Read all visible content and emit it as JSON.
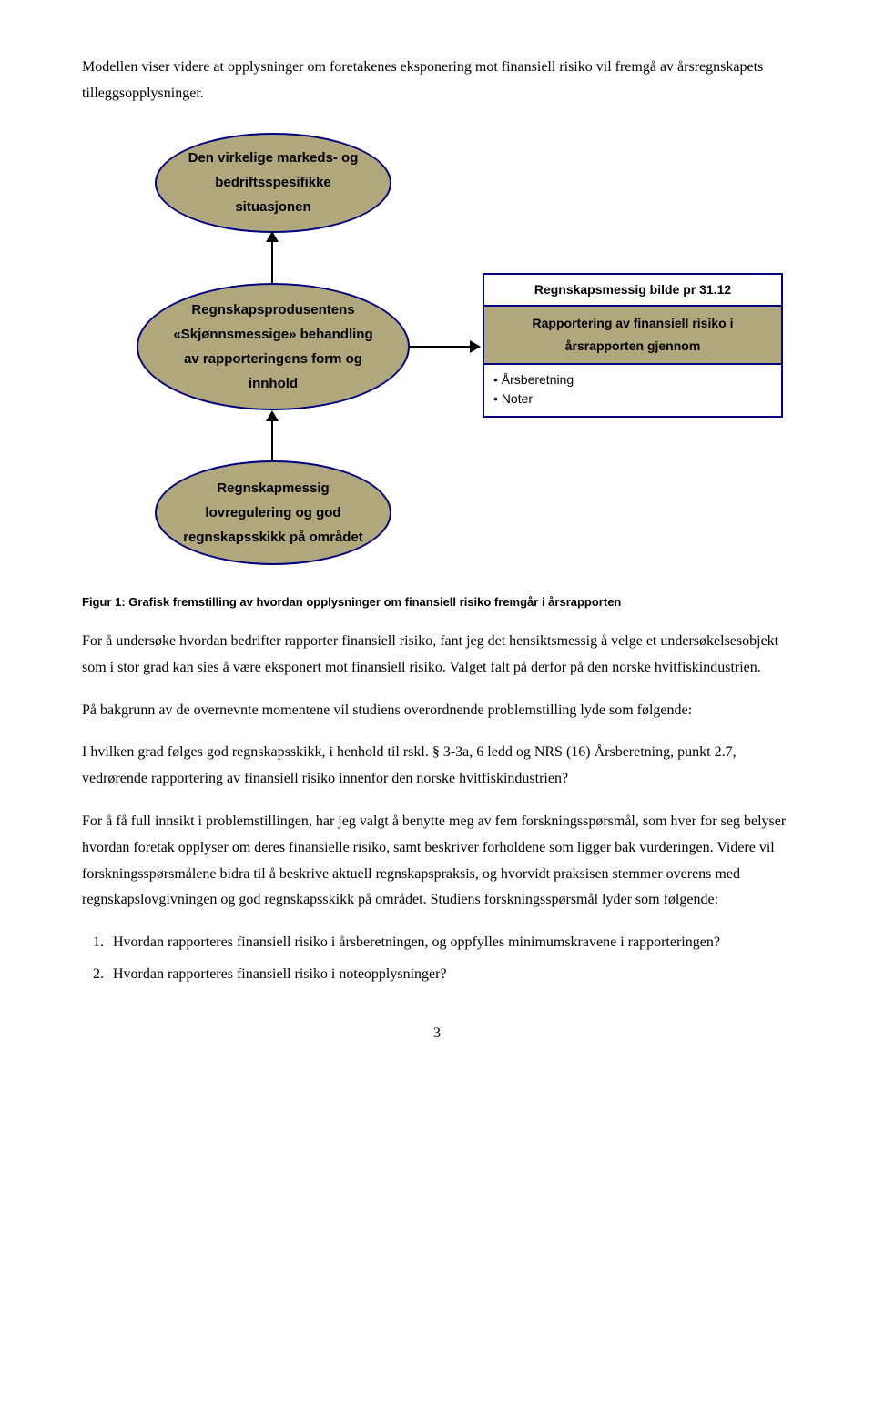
{
  "intro": "Modellen viser videre at opplysninger om foretakenes eksponering mot finansiell risiko vil fremgå av årsregnskapets tilleggsopplysninger.",
  "diagram": {
    "node1": "Den virkelige markeds- og bedriftsspesifikke situasjonen",
    "node2": "Regnskapsprodusentens «Skjønnsmessige» behandling av rapporteringens form og innhold",
    "node3": "Regnskapmessig lovregulering og god regnskapsskikk på området",
    "table_title": "Regnskapsmessig bilde pr 31.12",
    "table_sub": "Rapportering av finansiell risiko i årsrapporten gjennom",
    "table_item1": "• Årsberetning",
    "table_item2": "• Noter"
  },
  "caption": "Figur 1: Grafisk fremstilling av hvordan opplysninger om finansiell risiko fremgår i årsrapporten",
  "p1": "For å undersøke hvordan bedrifter rapporter finansiell risiko, fant jeg det hensiktsmessig å velge et undersøkelsesobjekt som i stor grad kan sies å være eksponert mot finansiell risiko. Valget falt på derfor på den norske hvitfiskindustrien.",
  "p2": "På bakgrunn av de overnevnte momentene vil studiens overordnende problemstilling lyde som følgende:",
  "question": "I hvilken grad følges god regnskapsskikk, i henhold til rskl. § 3-3a, 6 ledd og NRS (16) Årsberetning, punkt 2.7, vedrørende rapportering av finansiell risiko innenfor den norske hvitfiskindustrien?",
  "p3": "For å få full innsikt i problemstillingen, har jeg valgt å benytte meg av fem forskningsspørsmål, som hver for seg belyser hvordan foretak opplyser om deres finansielle risiko, samt beskriver forholdene som ligger bak vurderingen. Videre vil forskningsspørsmålene bidra til å beskrive aktuell regnskapspraksis, og hvorvidt praksisen stemmer overens med regnskapslovgivningen og god regnskapsskikk på området. Studiens forskningsspørsmål lyder som følgende:",
  "rq1": "Hvordan rapporteres finansiell risiko i årsberetningen, og oppfylles minimumskravene i rapporteringen?",
  "rq2": "Hvordan rapporteres finansiell risiko i noteopplysninger?",
  "page": "3",
  "colors": {
    "ellipse_fill": "#b1a77d",
    "border": "#000080",
    "bg": "#ffffff",
    "text": "#000000"
  }
}
